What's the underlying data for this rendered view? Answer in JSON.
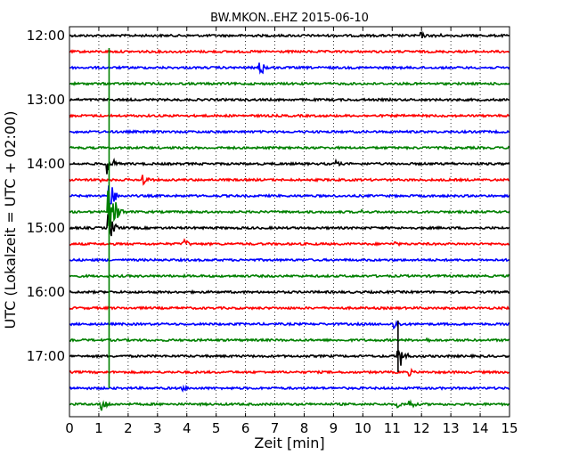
{
  "chart_data": {
    "type": "line",
    "title": "BW.MKON..EHZ 2015-06-10",
    "xlabel": "Zeit  [min]",
    "ylabel": "UTC (Lokalzeit = UTC + 02:00)",
    "xlim": [
      0,
      15
    ],
    "x_ticks": [
      0,
      1,
      2,
      3,
      4,
      5,
      6,
      7,
      8,
      9,
      10,
      11,
      12,
      13,
      14,
      15
    ],
    "x_tick_labels": [
      "0",
      "1",
      "2",
      "3",
      "4",
      "5",
      "6",
      "7",
      "8",
      "9",
      "10",
      "11",
      "12",
      "13",
      "14",
      "15"
    ],
    "y_tick_labels": [
      "12:00",
      "13:00",
      "14:00",
      "15:00",
      "16:00",
      "17:00"
    ],
    "grid": "vertical dotted",
    "color_cycle": [
      "#000000",
      "#ff0000",
      "#0000ff",
      "#008000"
    ],
    "rows": [
      {
        "start": "12:00",
        "events": [
          {
            "t": 12.0,
            "amp": 0.5
          },
          {
            "t": 12.5,
            "amp": 0.6
          }
        ]
      },
      {
        "start": "12:15",
        "events": []
      },
      {
        "start": "12:30",
        "events": [
          {
            "t": 6.5,
            "amp": 1.4
          }
        ]
      },
      {
        "start": "12:45",
        "events": []
      },
      {
        "start": "13:00",
        "events": []
      },
      {
        "start": "13:15",
        "events": []
      },
      {
        "start": "13:30",
        "events": []
      },
      {
        "start": "13:45",
        "events": []
      },
      {
        "start": "14:00",
        "events": [
          {
            "t": 1.3,
            "amp": 1.6
          },
          {
            "t": 1.5,
            "amp": 0.6
          },
          {
            "t": 9.1,
            "amp": 0.5
          },
          {
            "t": 13.0,
            "amp": 0.3
          }
        ]
      },
      {
        "start": "14:15",
        "events": [
          {
            "t": 1.0,
            "amp": 0.5
          },
          {
            "t": 2.5,
            "amp": 1.0
          },
          {
            "t": 9.1,
            "amp": 0.3
          }
        ]
      },
      {
        "start": "14:30",
        "events": [
          {
            "t": 1.35,
            "amp": 2.5
          }
        ]
      },
      {
        "start": "14:45",
        "events": [
          {
            "t": 1.35,
            "amp": 3.0
          },
          {
            "t": 1.6,
            "amp": 1.5
          },
          {
            "t": 10.0,
            "amp": 0.3
          }
        ]
      },
      {
        "start": "15:00",
        "events": [
          {
            "t": 1.35,
            "amp": 2.0
          },
          {
            "t": 1.6,
            "amp": 0.5
          }
        ]
      },
      {
        "start": "15:15",
        "events": [
          {
            "t": 3.9,
            "amp": 0.8
          },
          {
            "t": 11.1,
            "amp": 0.4
          }
        ]
      },
      {
        "start": "15:30",
        "events": []
      },
      {
        "start": "15:45",
        "events": []
      },
      {
        "start": "16:00",
        "events": []
      },
      {
        "start": "16:15",
        "events": []
      },
      {
        "start": "16:30",
        "events": [
          {
            "t": 11.1,
            "amp": 0.8
          }
        ]
      },
      {
        "start": "16:45",
        "events": [
          {
            "t": 12.2,
            "amp": 0.3
          }
        ]
      },
      {
        "start": "17:00",
        "events": [
          {
            "t": 11.2,
            "amp": 2.5
          }
        ]
      },
      {
        "start": "17:15",
        "events": [
          {
            "t": 11.6,
            "amp": 0.5
          }
        ]
      },
      {
        "start": "17:30",
        "events": [
          {
            "t": 3.9,
            "amp": 0.4
          }
        ]
      },
      {
        "start": "17:45",
        "events": [
          {
            "t": 1.1,
            "amp": 1.2
          },
          {
            "t": 11.2,
            "amp": 0.5
          },
          {
            "t": 11.6,
            "amp": 0.8
          }
        ]
      }
    ],
    "vertical_events": [
      {
        "t": 1.35,
        "from_row": 1,
        "to_row": 22,
        "color": "#008000"
      },
      {
        "t": 11.2,
        "from_row": 18,
        "to_row": 21,
        "color": "#000000"
      }
    ]
  }
}
